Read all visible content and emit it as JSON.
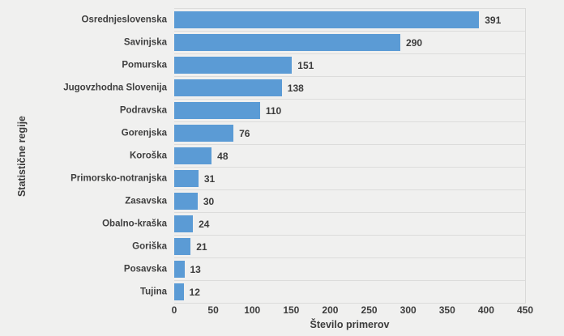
{
  "chart_data": {
    "type": "bar",
    "orientation": "horizontal",
    "title": "",
    "xlabel": "Število primerov",
    "ylabel": "Statistične regije",
    "categories": [
      "Osrednjeslovenska",
      "Savinjska",
      "Pomurska",
      "Jugovzhodna Slovenija",
      "Podravska",
      "Gorenjska",
      "Koroška",
      "Primorsko-notranjska",
      "Zasavska",
      "Obalno-kraška",
      "Goriška",
      "Posavska",
      "Tujina"
    ],
    "values": [
      391,
      290,
      151,
      138,
      110,
      76,
      48,
      31,
      30,
      24,
      21,
      13,
      12
    ],
    "data_labels_visible": true,
    "xlim": [
      0,
      450
    ],
    "xticks": [
      0,
      50,
      100,
      150,
      200,
      250,
      300,
      350,
      400,
      450
    ],
    "grid": "horizontal category separators, no vertical gridlines",
    "legend": "none",
    "colors": {
      "bar": "#5b9bd5",
      "background": "#f0f0ef",
      "gridline": "#dcdcdb",
      "text": "#3f3f3f"
    }
  }
}
